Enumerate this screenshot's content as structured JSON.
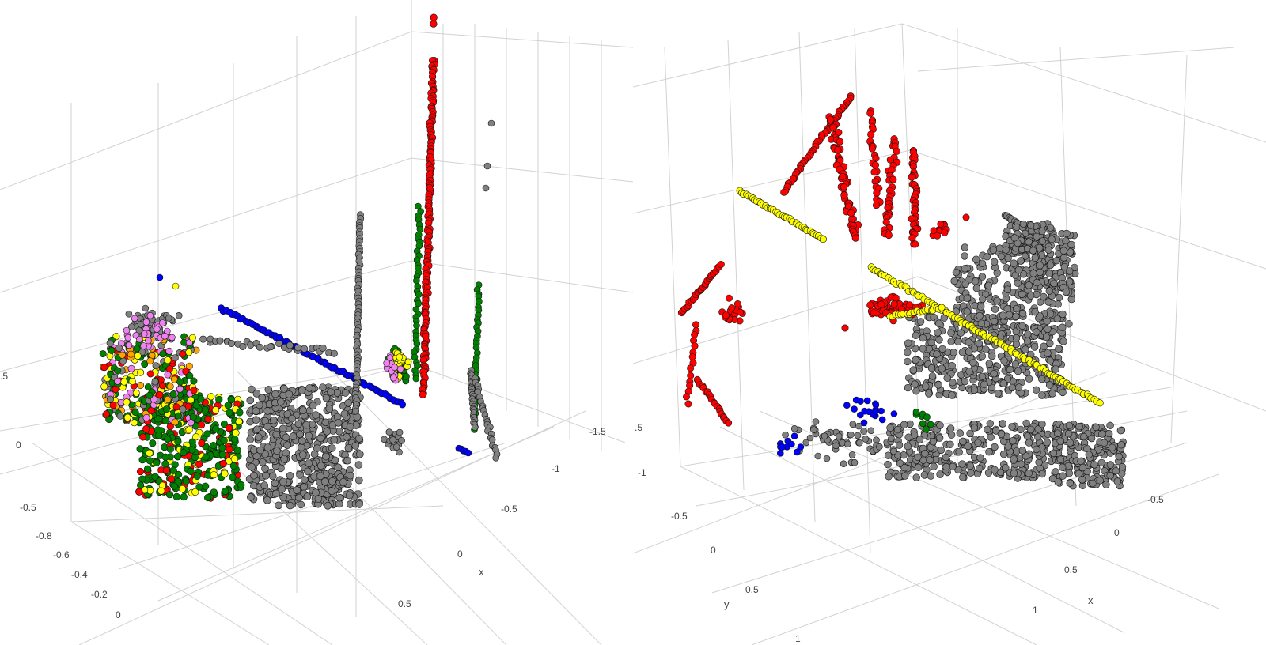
{
  "chart_data": [
    {
      "type": "scatter",
      "dimensions": 3,
      "title": "",
      "axes": {
        "x": {
          "title": "x",
          "ticks": [
            "-1.5",
            "-1",
            "-0.5",
            "0",
            "0.5"
          ]
        },
        "y": {
          "title": "",
          "ticks": [
            "-0.8",
            "-0.6",
            "-0.4",
            "-0.2",
            "0"
          ]
        },
        "z": {
          "title": "",
          "ticks": [
            "-0.5",
            "0",
            ".5"
          ]
        }
      },
      "grid": true,
      "series": [
        {
          "color": "#808080"
        },
        {
          "color": "#008000"
        },
        {
          "color": "#ff0000"
        },
        {
          "color": "#0000ff"
        },
        {
          "color": "#ffff00"
        },
        {
          "color": "#ee82ee"
        },
        {
          "color": "#ffa500"
        }
      ]
    },
    {
      "type": "scatter",
      "dimensions": 3,
      "title": "",
      "axes": {
        "x": {
          "title": "x",
          "ticks": [
            "-0.5",
            "0",
            "0.5",
            "1"
          ]
        },
        "y": {
          "title": "y",
          "ticks": [
            "-0.5",
            "0",
            "0.5",
            "1"
          ]
        },
        "z": {
          "title": "",
          "ticks": [
            "-1",
            ".5"
          ]
        }
      },
      "grid": true,
      "series": [
        {
          "color": "#808080"
        },
        {
          "color": "#ff0000"
        },
        {
          "color": "#ffff00"
        },
        {
          "color": "#0000ff"
        },
        {
          "color": "#008000"
        }
      ]
    }
  ]
}
